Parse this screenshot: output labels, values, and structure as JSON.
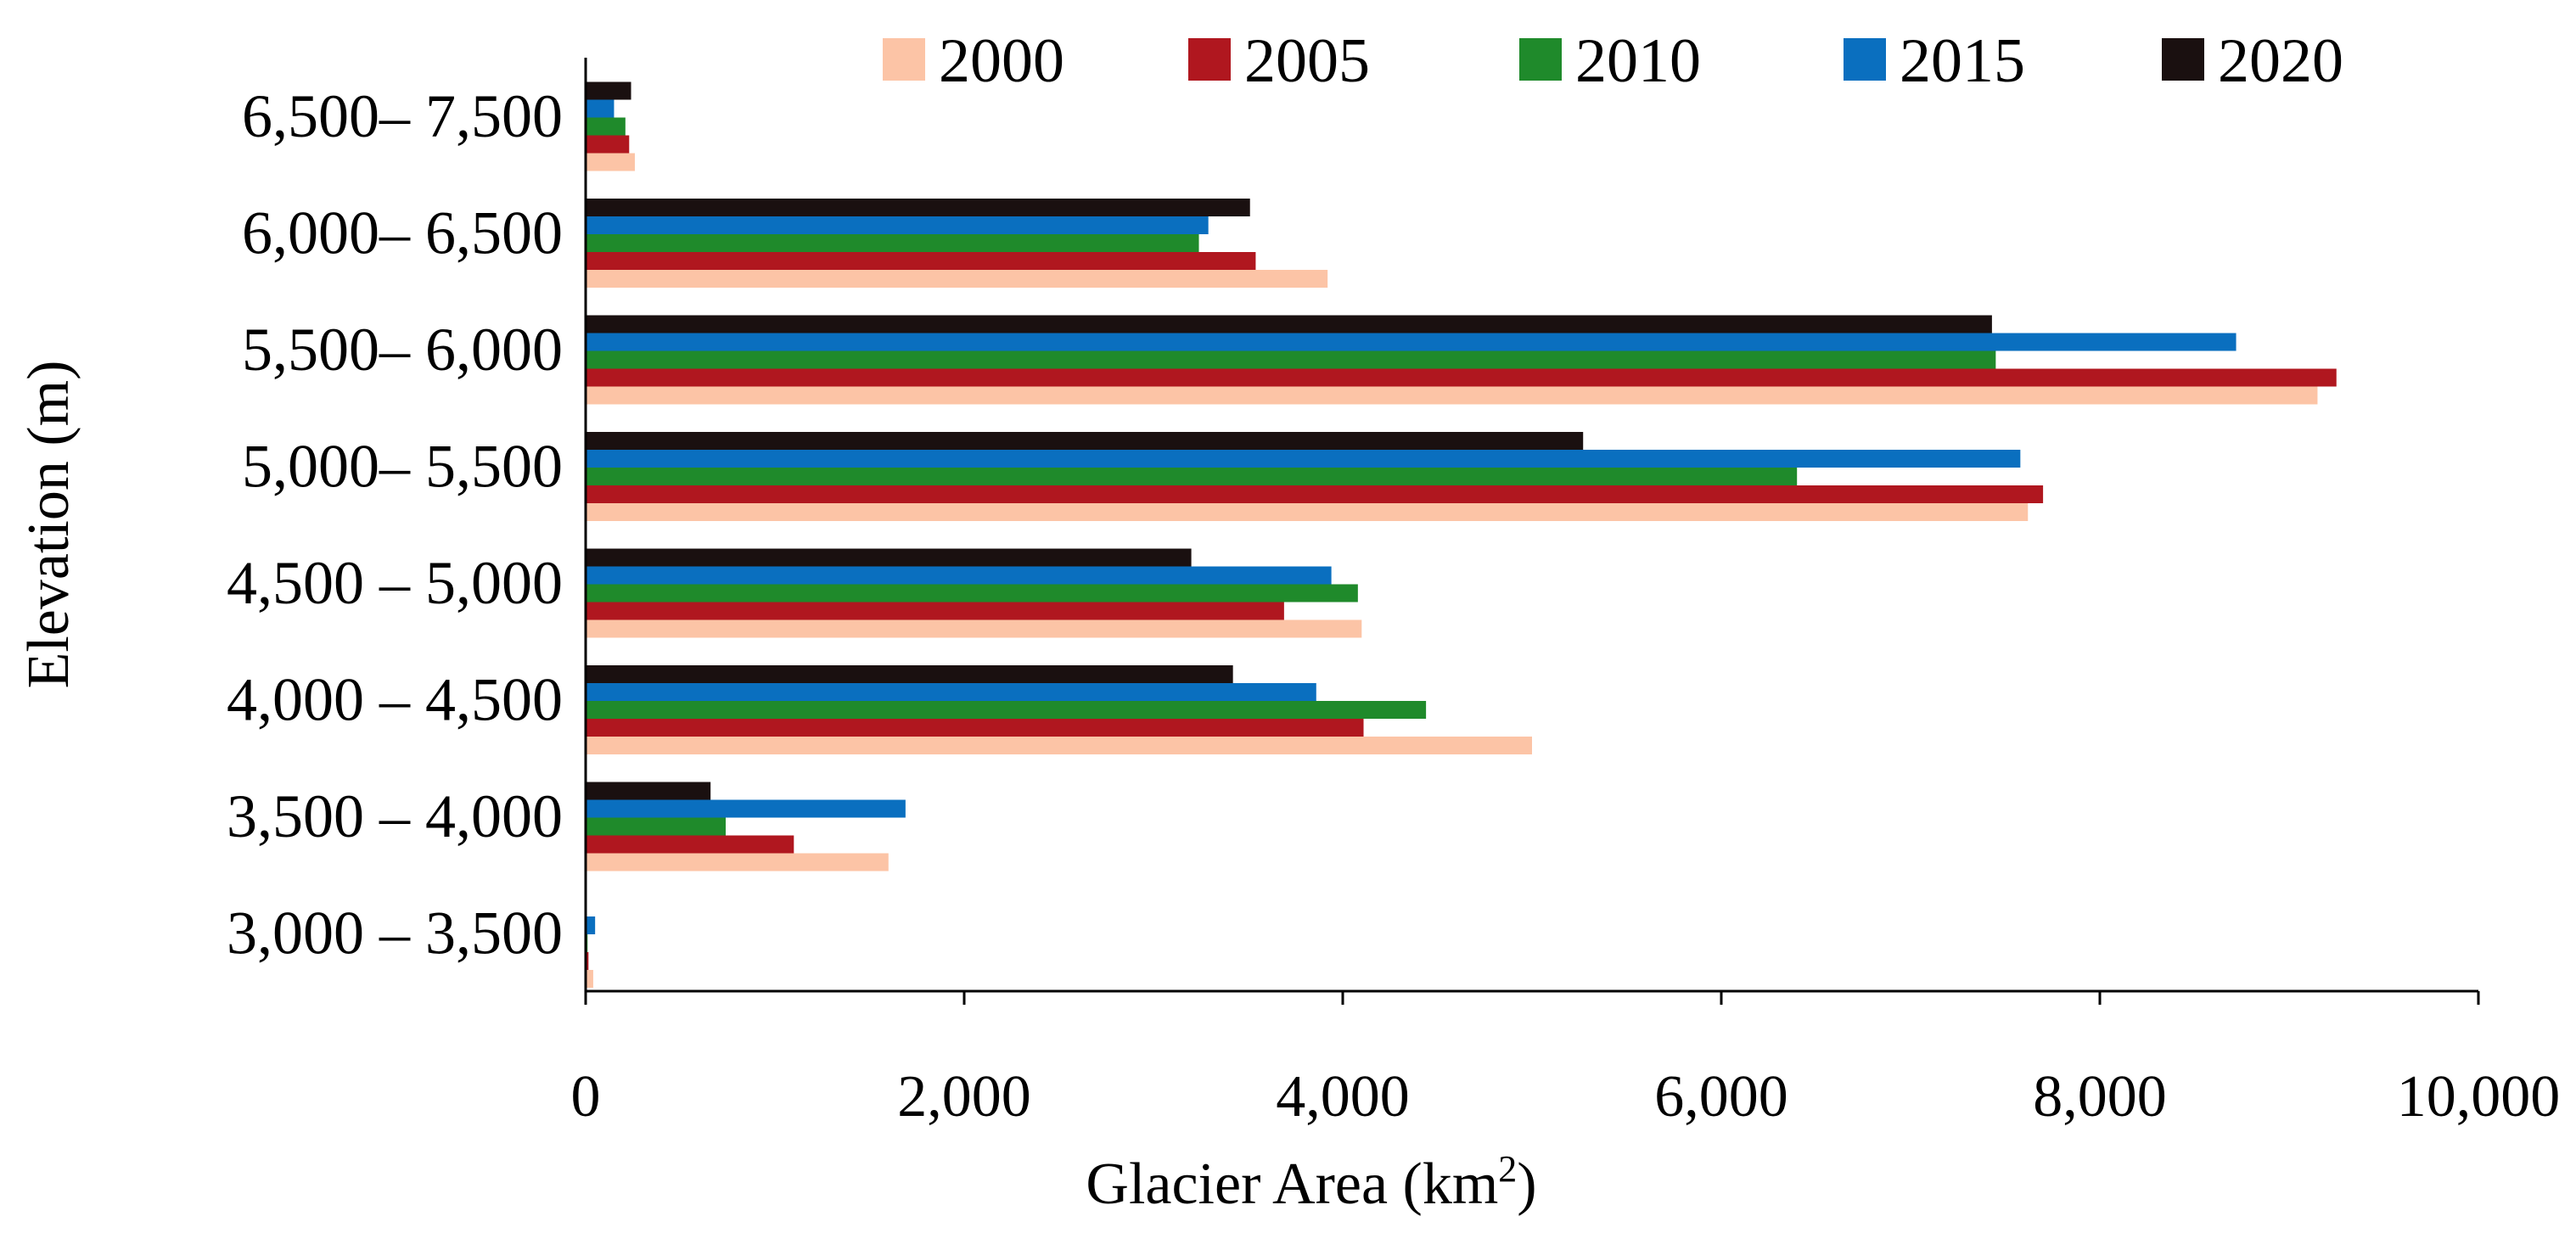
{
  "chart_data": {
    "type": "bar",
    "orientation": "horizontal",
    "title": "",
    "xlabel": "Glacier Area (km",
    "xlabel_superscript": "2",
    "xlabel_suffix": ")",
    "ylabel": "Elevation (m)",
    "xlim": [
      0,
      10000
    ],
    "xticks": [
      0,
      2000,
      4000,
      6000,
      8000,
      10000
    ],
    "xtick_labels": [
      "0",
      "2,000",
      "4,000",
      "6,000",
      "8,000",
      "10,000"
    ],
    "grid": false,
    "legend_position": "top",
    "categories": [
      "3,000 – 3,500",
      "3,500 – 4,000",
      "4,000 – 4,500",
      "4,500 – 5,000",
      "5,000– 5,500",
      "5,500– 6,000",
      "6,000– 6,500",
      "6,500– 7,500"
    ],
    "series": [
      {
        "name": "2000",
        "color": "#FCC4A6",
        "values": [
          40,
          1600,
          5000,
          4100,
          7620,
          9150,
          3920,
          260
        ]
      },
      {
        "name": "2005",
        "color": "#B0171F",
        "values": [
          15,
          1100,
          4110,
          3690,
          7700,
          9250,
          3540,
          230
        ]
      },
      {
        "name": "2010",
        "color": "#1F8A2B",
        "values": [
          10,
          740,
          4440,
          4080,
          6400,
          7450,
          3240,
          210
        ]
      },
      {
        "name": "2015",
        "color": "#0A6FBF",
        "values": [
          50,
          1690,
          3860,
          3940,
          7580,
          8720,
          3290,
          150
        ]
      },
      {
        "name": "2020",
        "color": "#1A1010",
        "values": [
          5,
          660,
          3420,
          3200,
          5270,
          7430,
          3510,
          240
        ]
      }
    ]
  }
}
